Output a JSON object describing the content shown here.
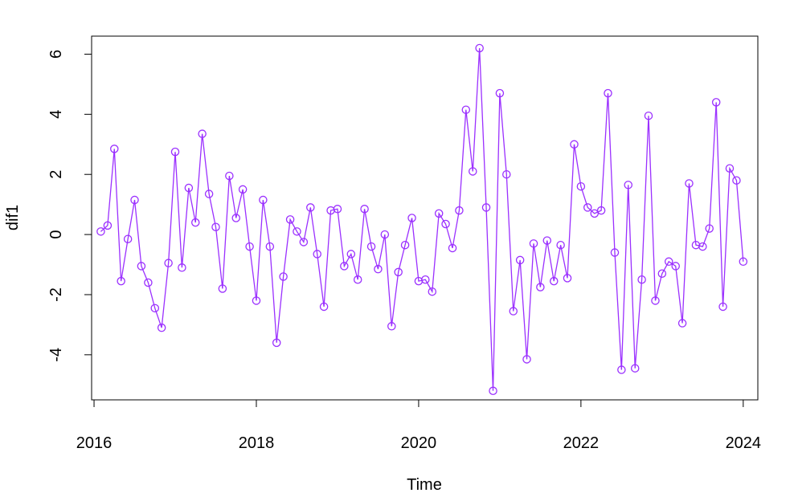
{
  "chart_data": {
    "type": "line",
    "title": "",
    "xlabel": "Time",
    "ylabel": "dif1",
    "xlim": [
      2015.97,
      2024.18
    ],
    "ylim": [
      -5.5,
      6.6
    ],
    "x_ticks": [
      2016,
      2018,
      2020,
      2022,
      2024
    ],
    "x_tick_labels": [
      "2016",
      "2018",
      "2020",
      "2022",
      "2024"
    ],
    "y_ticks": [
      -4,
      -2,
      0,
      2,
      4,
      6
    ],
    "y_tick_labels": [
      "-4",
      "-2",
      "0",
      "2",
      "4",
      "6"
    ],
    "grid": false,
    "legend": "none",
    "series_color": "#9b30ff",
    "x": [
      2016.083,
      2016.167,
      2016.25,
      2016.333,
      2016.417,
      2016.5,
      2016.583,
      2016.667,
      2016.75,
      2016.833,
      2016.917,
      2017.0,
      2017.083,
      2017.167,
      2017.25,
      2017.333,
      2017.417,
      2017.5,
      2017.583,
      2017.667,
      2017.75,
      2017.833,
      2017.917,
      2018.0,
      2018.083,
      2018.167,
      2018.25,
      2018.333,
      2018.417,
      2018.5,
      2018.583,
      2018.667,
      2018.75,
      2018.833,
      2018.917,
      2019.0,
      2019.083,
      2019.167,
      2019.25,
      2019.333,
      2019.417,
      2019.5,
      2019.583,
      2019.667,
      2019.75,
      2019.833,
      2019.917,
      2020.0,
      2020.083,
      2020.167,
      2020.25,
      2020.333,
      2020.417,
      2020.5,
      2020.583,
      2020.667,
      2020.75,
      2020.833,
      2020.917,
      2021.0,
      2021.083,
      2021.167,
      2021.25,
      2021.333,
      2021.417,
      2021.5,
      2021.583,
      2021.667,
      2021.75,
      2021.833,
      2021.917,
      2022.0,
      2022.083,
      2022.167,
      2022.25,
      2022.333,
      2022.417,
      2022.5,
      2022.583,
      2022.667,
      2022.75,
      2022.833,
      2022.917,
      2023.0,
      2023.083,
      2023.167,
      2023.25,
      2023.333,
      2023.417,
      2023.5,
      2023.583,
      2023.667,
      2023.75,
      2023.833,
      2023.917,
      2024.0
    ],
    "series": [
      {
        "values": [
          0.1,
          0.3,
          2.85,
          -1.55,
          -0.15,
          1.15,
          -1.05,
          -1.6,
          -2.45,
          -3.1,
          -0.95,
          2.75,
          -1.1,
          1.55,
          0.4,
          3.35,
          1.35,
          0.25,
          -1.8,
          1.95,
          0.55,
          1.5,
          -0.4,
          -2.2,
          1.15,
          -0.4,
          -3.6,
          -1.4,
          0.5,
          0.1,
          -0.25,
          0.9,
          -0.65,
          -2.4,
          0.8,
          0.85,
          -1.05,
          -0.65,
          -1.5,
          0.85,
          -0.4,
          -1.15,
          0.0,
          -3.05,
          -1.25,
          -0.35,
          0.55,
          -1.55,
          -1.5,
          -1.9,
          0.7,
          0.35,
          -0.45,
          0.8,
          4.15,
          2.1,
          6.2,
          0.9,
          -5.2,
          4.7,
          2.0,
          -2.55,
          -0.85,
          -4.15,
          -0.3,
          -1.75,
          -0.2,
          -1.55,
          -0.35,
          -1.45,
          3.0,
          1.6,
          0.9,
          0.7,
          0.8,
          4.7,
          -0.6,
          -4.5,
          1.65,
          -4.45,
          -1.5,
          3.95,
          -2.2,
          -1.3,
          -0.9,
          -1.05,
          -2.95,
          1.7,
          -0.35,
          -0.4,
          0.2,
          4.4,
          -2.4,
          2.2,
          1.8,
          -0.9
        ]
      }
    ]
  }
}
